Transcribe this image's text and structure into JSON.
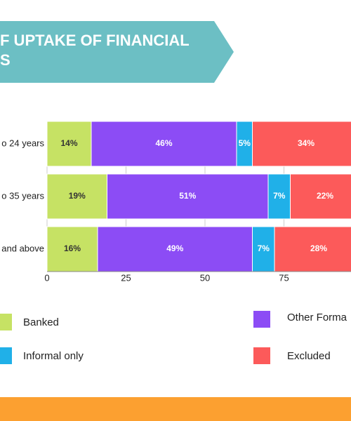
{
  "chart_data": {
    "type": "stacked-bar-horizontal",
    "title_lines": [
      "F UPTAKE OF FINANCIAL",
      "S"
    ],
    "categories": [
      "o 24 years",
      "o 35 years",
      "and above"
    ],
    "series": [
      {
        "name": "Banked",
        "color": "#c6e264",
        "values": [
          14,
          19,
          16
        ],
        "value_labels": [
          "14%",
          "19%",
          "16%"
        ]
      },
      {
        "name": "Other Forma",
        "color": "#8c4cf5",
        "values": [
          46,
          51,
          49
        ],
        "value_labels": [
          "46%",
          "51%",
          "49%"
        ]
      },
      {
        "name": "Informal only",
        "color": "#20b0e8",
        "values": [
          5,
          7,
          7
        ],
        "value_labels": [
          "5%",
          "7%",
          "7%"
        ]
      },
      {
        "name": "Excluded",
        "color": "#fc5a5a",
        "values": [
          34,
          22,
          28
        ],
        "value_labels": [
          "34%",
          "22%",
          "28%"
        ]
      }
    ],
    "xlim": [
      0,
      100
    ],
    "xticks": [
      0,
      25,
      50,
      75
    ],
    "grid": true
  }
}
